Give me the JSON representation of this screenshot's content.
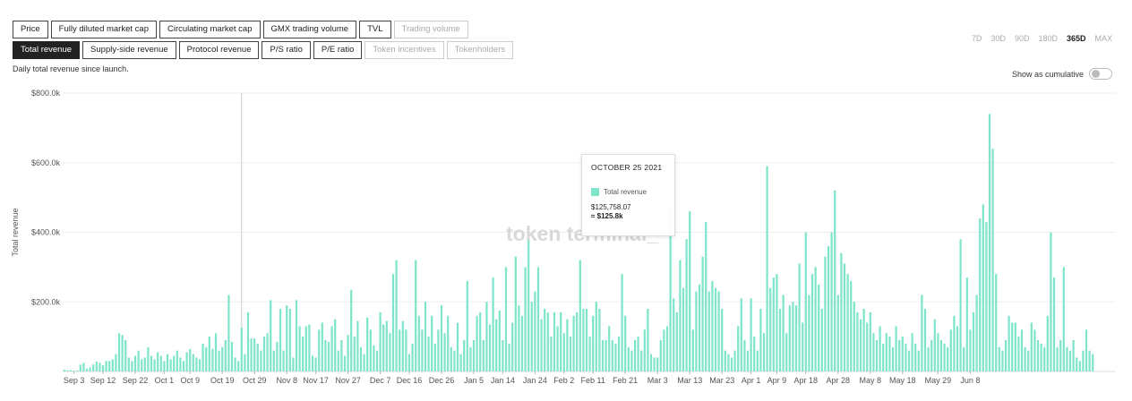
{
  "toolbar": {
    "row1": [
      {
        "label": "Price",
        "state": "normal"
      },
      {
        "label": "Fully diluted market cap",
        "state": "normal"
      },
      {
        "label": "Circulating market cap",
        "state": "normal"
      },
      {
        "label": "GMX trading volume",
        "state": "normal"
      },
      {
        "label": "TVL",
        "state": "normal"
      },
      {
        "label": "Trading volume",
        "state": "disabled"
      }
    ],
    "row2": [
      {
        "label": "Total revenue",
        "state": "active"
      },
      {
        "label": "Supply-side revenue",
        "state": "normal"
      },
      {
        "label": "Protocol revenue",
        "state": "normal"
      },
      {
        "label": "P/S ratio",
        "state": "normal"
      },
      {
        "label": "P/E ratio",
        "state": "normal"
      },
      {
        "label": "Token incentives",
        "state": "disabled"
      },
      {
        "label": "Tokenholders",
        "state": "disabled"
      }
    ]
  },
  "ranges": [
    {
      "label": "7D",
      "active": false
    },
    {
      "label": "30D",
      "active": false
    },
    {
      "label": "90D",
      "active": false
    },
    {
      "label": "180D",
      "active": false
    },
    {
      "label": "365D",
      "active": true
    },
    {
      "label": "MAX",
      "active": false
    }
  ],
  "subtitle": "Daily total revenue since launch.",
  "cumulative_label": "Show as cumulative",
  "cumulative_on": false,
  "watermark": "token terminal_",
  "tooltip": {
    "date": "OCTOBER 25 2021",
    "series": "Total revenue",
    "value": "$125,758.07",
    "approx": "≈ $125.8k"
  },
  "colors": {
    "bar": "#7ee5cb",
    "grid": "#eeeeee",
    "axis_text": "#555555",
    "watermark": "#cccccc"
  },
  "chart_data": {
    "type": "bar",
    "ylabel": "Total revenue",
    "ylim": [
      0,
      800000
    ],
    "yticks": [
      0,
      200000,
      400000,
      600000,
      800000
    ],
    "ytick_labels": [
      "",
      "$200.0k",
      "$400.0k",
      "$600.0k",
      "$800.0k"
    ],
    "xtick_labels": [
      "Sep 3",
      "Sep 12",
      "Sep 22",
      "Oct 1",
      "Oct 9",
      "Oct 19",
      "Oct 29",
      "Nov 8",
      "Nov 17",
      "Nov 27",
      "Dec 7",
      "Dec 16",
      "Dec 26",
      "Jan 5",
      "Jan 14",
      "Jan 24",
      "Feb 2",
      "Feb 11",
      "Feb 21",
      "Mar 3",
      "Mar 13",
      "Mar 23",
      "Apr 1",
      "Apr 9",
      "Apr 18",
      "Apr 28",
      "May 8",
      "May 18",
      "May 29",
      "Jun 8"
    ],
    "xtick_index": [
      3,
      12,
      22,
      31,
      39,
      49,
      59,
      69,
      78,
      88,
      98,
      107,
      117,
      127,
      136,
      146,
      155,
      164,
      174,
      184,
      194,
      204,
      213,
      221,
      230,
      240,
      250,
      260,
      271,
      281
    ],
    "hover_index": 55,
    "series": [
      {
        "name": "Total revenue",
        "values": [
          5000,
          3000,
          4000,
          2000,
          3000,
          20000,
          25000,
          8000,
          12000,
          20000,
          28000,
          25000,
          18000,
          30000,
          30000,
          35000,
          50000,
          110000,
          105000,
          90000,
          40000,
          30000,
          45000,
          60000,
          35000,
          40000,
          70000,
          45000,
          35000,
          55000,
          45000,
          30000,
          50000,
          35000,
          45000,
          60000,
          40000,
          30000,
          55000,
          65000,
          50000,
          40000,
          35000,
          80000,
          70000,
          100000,
          65000,
          110000,
          60000,
          70000,
          90000,
          220000,
          85000,
          40000,
          30000,
          125758,
          50000,
          170000,
          95000,
          95000,
          80000,
          60000,
          100000,
          110000,
          205000,
          60000,
          85000,
          180000,
          60000,
          190000,
          180000,
          40000,
          205000,
          130000,
          100000,
          130000,
          135000,
          45000,
          40000,
          120000,
          140000,
          90000,
          85000,
          130000,
          150000,
          60000,
          90000,
          45000,
          105000,
          235000,
          100000,
          145000,
          70000,
          50000,
          155000,
          120000,
          75000,
          60000,
          170000,
          135000,
          145000,
          110000,
          280000,
          320000,
          120000,
          145000,
          120000,
          50000,
          80000,
          320000,
          160000,
          120000,
          200000,
          100000,
          160000,
          80000,
          120000,
          190000,
          110000,
          160000,
          70000,
          60000,
          140000,
          50000,
          90000,
          260000,
          70000,
          90000,
          160000,
          170000,
          90000,
          200000,
          135000,
          270000,
          150000,
          175000,
          90000,
          300000,
          80000,
          140000,
          330000,
          190000,
          160000,
          300000,
          380000,
          200000,
          230000,
          300000,
          150000,
          180000,
          170000,
          100000,
          170000,
          130000,
          170000,
          110000,
          150000,
          100000,
          160000,
          170000,
          320000,
          180000,
          180000,
          100000,
          160000,
          200000,
          180000,
          90000,
          90000,
          130000,
          90000,
          80000,
          100000,
          280000,
          160000,
          70000,
          60000,
          90000,
          100000,
          60000,
          120000,
          180000,
          50000,
          40000,
          40000,
          90000,
          120000,
          130000,
          470000,
          210000,
          170000,
          320000,
          240000,
          380000,
          460000,
          120000,
          230000,
          250000,
          330000,
          430000,
          230000,
          260000,
          240000,
          230000,
          180000,
          60000,
          50000,
          40000,
          60000,
          130000,
          210000,
          90000,
          60000,
          210000,
          100000,
          60000,
          180000,
          110000,
          590000,
          240000,
          270000,
          280000,
          180000,
          220000,
          110000,
          190000,
          200000,
          190000,
          310000,
          140000,
          400000,
          220000,
          280000,
          300000,
          250000,
          180000,
          330000,
          360000,
          400000,
          520000,
          220000,
          340000,
          310000,
          280000,
          260000,
          200000,
          170000,
          150000,
          180000,
          140000,
          170000,
          110000,
          90000,
          130000,
          80000,
          110000,
          100000,
          70000,
          130000,
          90000,
          100000,
          80000,
          60000,
          110000,
          80000,
          60000,
          220000,
          180000,
          70000,
          90000,
          150000,
          110000,
          90000,
          80000,
          70000,
          120000,
          160000,
          130000,
          380000,
          70000,
          270000,
          120000,
          170000,
          220000,
          440000,
          480000,
          430000,
          740000,
          640000,
          280000,
          70000,
          60000,
          90000,
          160000,
          140000,
          140000,
          100000,
          120000,
          70000,
          60000,
          140000,
          120000,
          90000,
          80000,
          70000,
          160000,
          400000,
          270000,
          70000,
          90000,
          300000,
          70000,
          60000,
          90000,
          40000,
          30000,
          60000,
          120000,
          60000,
          50000
        ]
      }
    ]
  }
}
